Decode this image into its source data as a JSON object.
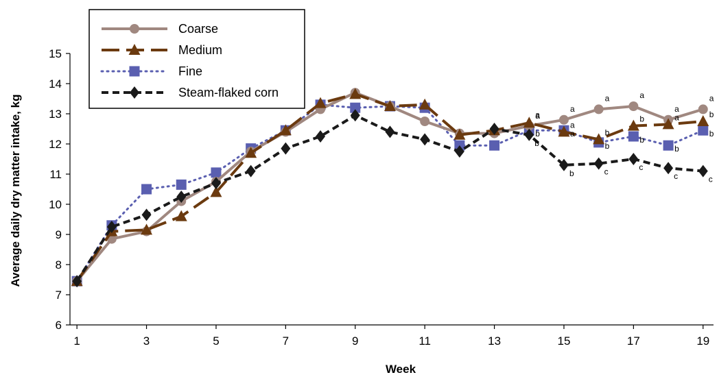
{
  "chart_data": {
    "type": "line",
    "xlabel": "Week",
    "ylabel": "Average daily dry matter intake, kg",
    "xlim": [
      0.8,
      19.3
    ],
    "ylim": [
      6,
      15
    ],
    "x_ticks": [
      1,
      3,
      5,
      7,
      9,
      11,
      13,
      15,
      17,
      19
    ],
    "y_ticks": [
      6,
      7,
      8,
      9,
      10,
      11,
      12,
      13,
      14,
      15
    ],
    "legend_position": "top-left",
    "grid": false,
    "series": [
      {
        "name": "Coarse",
        "color": "#a08880",
        "dash": "solid",
        "marker": "circle",
        "x": [
          1,
          2,
          3,
          4,
          5,
          6,
          7,
          8,
          9,
          10,
          11,
          12,
          13,
          14,
          15,
          16,
          17,
          18,
          19
        ],
        "y": [
          7.45,
          8.85,
          9.1,
          10.1,
          10.75,
          11.75,
          12.4,
          13.15,
          13.7,
          13.25,
          12.75,
          12.35,
          12.35,
          12.6,
          12.8,
          13.15,
          13.25,
          12.8,
          13.15
        ],
        "sig": [
          null,
          null,
          null,
          null,
          null,
          null,
          null,
          null,
          null,
          null,
          null,
          null,
          null,
          "a",
          "a",
          "a",
          "a",
          "a",
          "a"
        ]
      },
      {
        "name": "Medium",
        "color": "#6b3a0f",
        "dash": "long-dash",
        "marker": "triangle",
        "x": [
          1,
          2,
          3,
          4,
          5,
          6,
          7,
          8,
          9,
          10,
          11,
          12,
          13,
          14,
          15,
          16,
          17,
          18,
          19
        ],
        "y": [
          7.45,
          9.1,
          9.15,
          9.6,
          10.4,
          11.7,
          12.45,
          13.35,
          13.65,
          13.25,
          13.3,
          12.3,
          12.45,
          12.7,
          12.4,
          12.15,
          12.6,
          12.65,
          12.75
        ],
        "sig": [
          null,
          null,
          null,
          null,
          null,
          null,
          null,
          null,
          null,
          null,
          null,
          null,
          null,
          "a",
          "a",
          "b",
          "b",
          "a",
          "b"
        ]
      },
      {
        "name": "Fine",
        "color": "#5a5fb0",
        "dash": "dotted",
        "marker": "square",
        "x": [
          1,
          2,
          3,
          4,
          5,
          6,
          7,
          8,
          9,
          10,
          11,
          12,
          13,
          14,
          15,
          16,
          17,
          18,
          19
        ],
        "y": [
          7.45,
          9.3,
          10.5,
          10.65,
          11.05,
          11.85,
          12.45,
          13.3,
          13.2,
          13.25,
          13.2,
          11.95,
          11.95,
          12.45,
          12.45,
          12.05,
          12.25,
          11.95,
          12.45
        ],
        "sig": [
          null,
          null,
          null,
          null,
          null,
          null,
          null,
          null,
          null,
          null,
          null,
          null,
          null,
          "b",
          "a",
          "b",
          "b",
          "b",
          "b"
        ]
      },
      {
        "name": "Steam-flaked corn",
        "color": "#1a1a1a",
        "dash": "short-dash",
        "marker": "diamond",
        "x": [
          1,
          2,
          3,
          4,
          5,
          6,
          7,
          8,
          9,
          10,
          11,
          12,
          13,
          14,
          15,
          16,
          17,
          18,
          19
        ],
        "y": [
          7.45,
          9.25,
          9.65,
          10.25,
          10.7,
          11.1,
          11.85,
          12.25,
          12.95,
          12.4,
          12.15,
          11.75,
          12.5,
          12.3,
          11.3,
          11.35,
          11.5,
          11.2,
          11.1
        ],
        "sig": [
          null,
          null,
          null,
          null,
          null,
          null,
          null,
          null,
          null,
          null,
          null,
          null,
          null,
          "b",
          "b",
          "c",
          "c",
          "c",
          "c"
        ]
      }
    ]
  }
}
